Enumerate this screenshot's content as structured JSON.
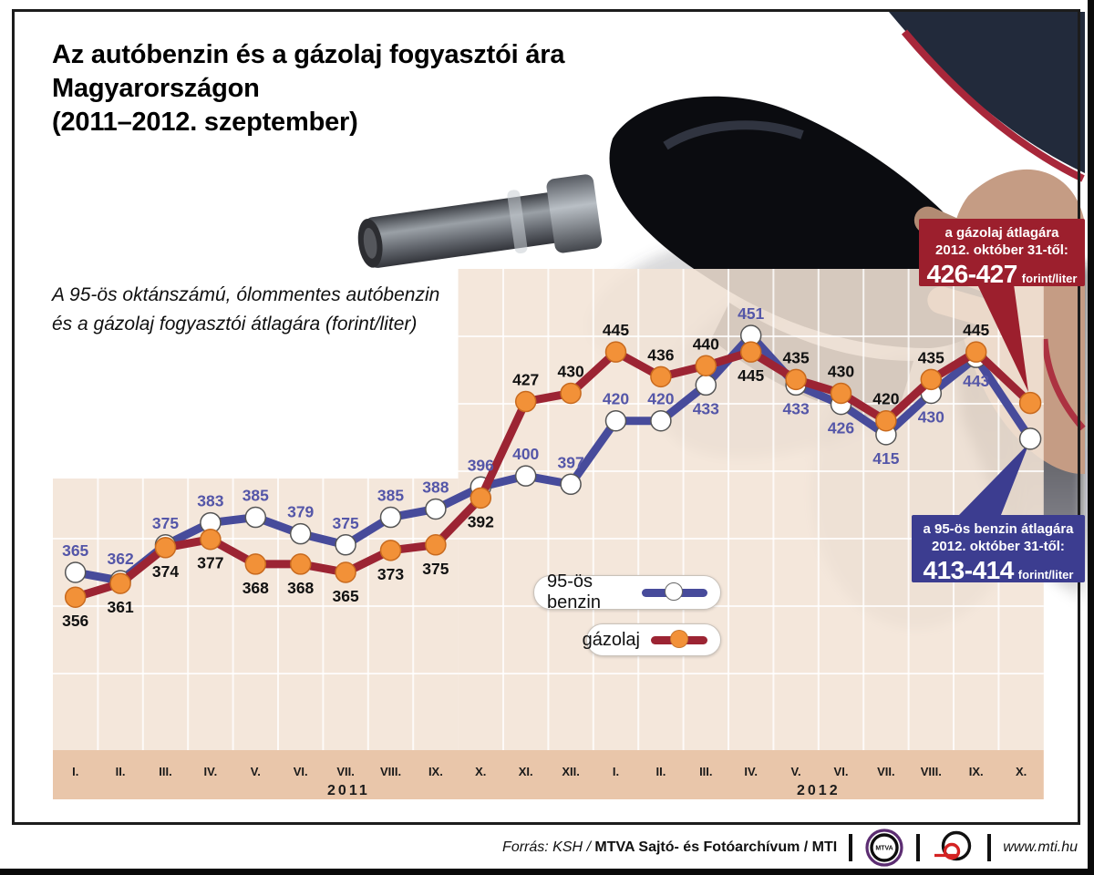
{
  "title": {
    "lines": [
      "Az autóbenzin és a gázolaj fogyasztói ára",
      "Magyarországon",
      "(2011–2012. szeptember)"
    ]
  },
  "subtitle": {
    "lines": [
      "A 95-ös oktánszámú, ólommentes autóbenzin",
      "és a gázolaj fogyasztói átlagára (forint/liter)"
    ]
  },
  "chart_data": {
    "type": "line",
    "categories": [
      "I.",
      "II.",
      "III.",
      "IV.",
      "V.",
      "VI.",
      "VII.",
      "VIII.",
      "IX.",
      "X.",
      "XI.",
      "XII.",
      "I.",
      "II.",
      "III.",
      "IV.",
      "V.",
      "VI.",
      "VII.",
      "VIII.",
      "IX.",
      "X."
    ],
    "year_groups": [
      {
        "label": "2011",
        "start": 0,
        "end": 11
      },
      {
        "label": "2012",
        "start": 12,
        "end": 21
      }
    ],
    "series": [
      {
        "name": "95-ös benzin",
        "line_color": "#474b9b",
        "marker_fill": "#ffffff",
        "marker_stroke": "#555555",
        "label_color": "#5456a8",
        "values": [
          365,
          362,
          375,
          383,
          385,
          379,
          375,
          385,
          388,
          396,
          400,
          397,
          420,
          420,
          433,
          451,
          433,
          426,
          415,
          430,
          443
        ],
        "label_side": [
          "above",
          "above",
          "above",
          "above",
          "above",
          "above",
          "above",
          "above",
          "above",
          "above",
          "above",
          "above",
          "above",
          "above",
          "below",
          "above",
          "below",
          "below",
          "below",
          "below",
          "below"
        ],
        "final_point_estimate": 413.5
      },
      {
        "name": "gázolaj",
        "line_color": "#9c2433",
        "marker_fill": "#f29138",
        "marker_stroke": "#c86a1e",
        "label_color": "#111111",
        "values": [
          356,
          361,
          374,
          377,
          368,
          368,
          365,
          373,
          375,
          392,
          427,
          430,
          445,
          436,
          440,
          445,
          435,
          430,
          420,
          435,
          445
        ],
        "label_side": [
          "below",
          "below",
          "below",
          "below",
          "below",
          "below",
          "below",
          "below",
          "below",
          "below",
          "above",
          "above",
          "above",
          "above",
          "above",
          "below",
          "above",
          "above",
          "above",
          "above",
          "above"
        ],
        "final_point_estimate": 426.5
      }
    ],
    "grid": true,
    "ylim": [
      298,
      475
    ],
    "plot_bg": "rgba(242,228,214,0.88)",
    "axis_strip_bg": "#e9c6aa",
    "grid_color": "rgba(255,255,255,0.8)"
  },
  "legend": {
    "items": [
      {
        "label": "95-ös benzin"
      },
      {
        "label": "gázolaj"
      }
    ]
  },
  "callouts": {
    "diesel": {
      "line1": "a gázolaj átlagára",
      "line2": "2012. október 31-től:",
      "value": "426-427",
      "unit": "forint/liter",
      "bg": "#9c1f2d"
    },
    "benzin": {
      "line1": "a 95-ös benzin átlagára",
      "line2": "2012. október 31-től:",
      "value": "413-414",
      "unit": "forint/liter",
      "bg": "#3c3d90"
    }
  },
  "footer": {
    "source_italic": "Forrás: KSH / ",
    "source_bold": "MTVA Sajtó- és Fotóarchívum / MTI",
    "mtva_logo_text": "MTVA",
    "url": "www.mti.hu"
  }
}
